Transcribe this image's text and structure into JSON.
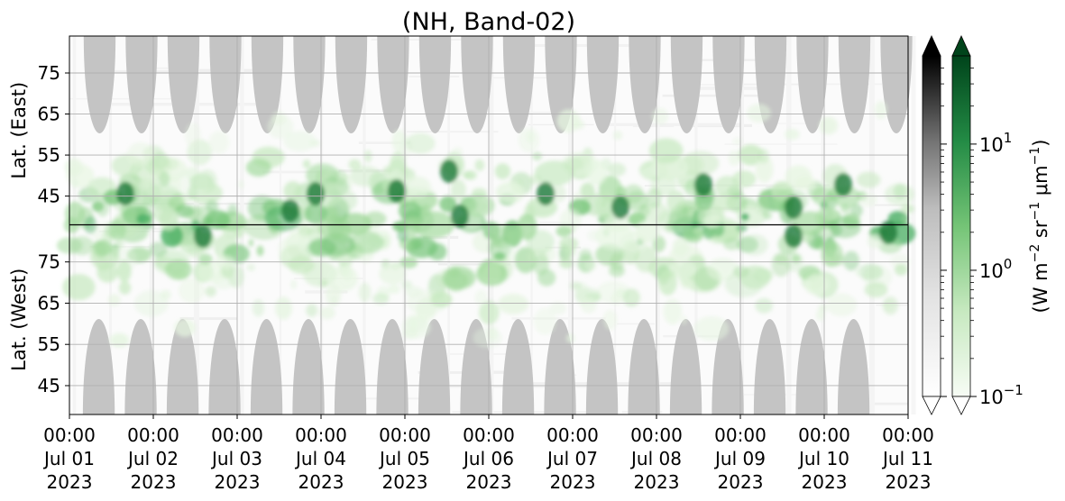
{
  "chart_data": {
    "type": "heatmap",
    "title": "(NH, Band-02)",
    "x_ticks": [
      {
        "time": "00:00",
        "date": "Jul 01",
        "year": "2023"
      },
      {
        "time": "00:00",
        "date": "Jul 02",
        "year": "2023"
      },
      {
        "time": "00:00",
        "date": "Jul 03",
        "year": "2023"
      },
      {
        "time": "00:00",
        "date": "Jul 04",
        "year": "2023"
      },
      {
        "time": "00:00",
        "date": "Jul 05",
        "year": "2023"
      },
      {
        "time": "00:00",
        "date": "Jul 06",
        "year": "2023"
      },
      {
        "time": "00:00",
        "date": "Jul 07",
        "year": "2023"
      },
      {
        "time": "00:00",
        "date": "Jul 08",
        "year": "2023"
      },
      {
        "time": "00:00",
        "date": "Jul 09",
        "year": "2023"
      },
      {
        "time": "00:00",
        "date": "Jul 10",
        "year": "2023"
      },
      {
        "time": "00:00",
        "date": "Jul 11",
        "year": "2023"
      }
    ],
    "xlim": [
      "2023-07-01 00:00",
      "2023-07-11 00:00"
    ],
    "panels": [
      {
        "name": "east",
        "ylabel": "Lat. (East)",
        "yticks": [
          "45",
          "55",
          "65",
          "75"
        ],
        "ylim": [
          38,
          84
        ],
        "tick_values": [
          45,
          55,
          65,
          75
        ]
      },
      {
        "name": "west",
        "ylabel": "Lat. (West)",
        "yticks": [
          "75",
          "65",
          "55",
          "45"
        ],
        "ylim": [
          84,
          38
        ],
        "tick_values": [
          75,
          65,
          55,
          45
        ]
      }
    ],
    "grid": true,
    "colorbars": [
      {
        "cmap": "Greys",
        "extend": "both"
      },
      {
        "cmap": "Greens",
        "extend": "both",
        "scale": "log",
        "range": [
          0.1,
          50
        ],
        "ticks": [
          {
            "base": "10",
            "exp": "−1",
            "value": 0.1
          },
          {
            "base": "10",
            "exp": "0",
            "value": 1
          },
          {
            "base": "10",
            "exp": "1",
            "value": 10
          }
        ],
        "label": "(W m$^{-2}$ sr$^{-1}$ $\\mu$m$^{-1}$)"
      }
    ],
    "emission_band_center_lat": 78,
    "night_shading_color": "#c4c4c4",
    "colors": {
      "green_dark": "#00441b",
      "green_mid": "#41ab5d",
      "green_light": "#c7e9c0",
      "grey": "#c4c4c4"
    }
  }
}
